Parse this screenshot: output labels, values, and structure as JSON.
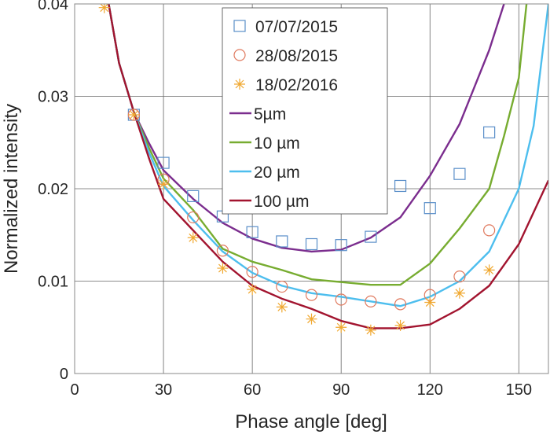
{
  "chart_data": {
    "type": "scatter+line",
    "xlabel": "Phase angle [deg]",
    "ylabel": "Normalized intensity",
    "xlim": [
      0,
      160
    ],
    "ylim": [
      0,
      0.04
    ],
    "xticks": [
      0,
      30,
      60,
      90,
      120,
      150
    ],
    "yticks": [
      0,
      0.01,
      0.02,
      0.03,
      0.04
    ],
    "ytick_labels": [
      "0",
      "0.01",
      "0.02",
      "0.03",
      "0.04"
    ],
    "grid": true,
    "legend_placement": "top-center",
    "scatter_series": [
      {
        "name": "07/07/2015",
        "marker": "square",
        "color": "#5b8fc9",
        "x": [
          20,
          30,
          40,
          50,
          60,
          70,
          80,
          90,
          100,
          110,
          120,
          130,
          140
        ],
        "y": [
          0.028,
          0.0228,
          0.0192,
          0.017,
          0.0153,
          0.0143,
          0.014,
          0.0139,
          0.0148,
          0.0203,
          0.0179,
          0.0216,
          0.0261
        ]
      },
      {
        "name": "28/08/2015",
        "marker": "circle",
        "color": "#e07a5f",
        "x": [
          20,
          30,
          40,
          50,
          60,
          70,
          80,
          90,
          100,
          110,
          120,
          130,
          140
        ],
        "y": [
          0.028,
          0.021,
          0.0169,
          0.0133,
          0.011,
          0.0094,
          0.0085,
          0.008,
          0.0078,
          0.0075,
          0.0085,
          0.0105,
          0.0155
        ]
      },
      {
        "name": "18/02/2016",
        "marker": "asterisk",
        "color": "#f0a830",
        "x": [
          10,
          20,
          30,
          40,
          50,
          60,
          70,
          80,
          90,
          100,
          110,
          120,
          130,
          140
        ],
        "y": [
          0.0396,
          0.028,
          0.0205,
          0.0147,
          0.0114,
          0.0091,
          0.0072,
          0.0059,
          0.005,
          0.0047,
          0.0052,
          0.0077,
          0.0087,
          0.0112
        ]
      }
    ],
    "line_series": [
      {
        "name": "5µm",
        "color": "#7b2d8e",
        "x": [
          11.5,
          15,
          20,
          25,
          30,
          40,
          50,
          60,
          70,
          80,
          90,
          100,
          110,
          120,
          130,
          140,
          145
        ],
        "y": [
          0.04,
          0.0336,
          0.0283,
          0.025,
          0.022,
          0.0189,
          0.0163,
          0.0146,
          0.0136,
          0.0132,
          0.0134,
          0.0147,
          0.0169,
          0.0214,
          0.027,
          0.035,
          0.04
        ]
      },
      {
        "name": "10 µm",
        "color": "#77ac30",
        "x": [
          11.5,
          15,
          20,
          25,
          30,
          40,
          50,
          60,
          70,
          80,
          90,
          100,
          110,
          120,
          130,
          140,
          145,
          150,
          152.6
        ],
        "y": [
          0.04,
          0.0336,
          0.0283,
          0.0245,
          0.0211,
          0.0177,
          0.0135,
          0.0121,
          0.0112,
          0.0102,
          0.0099,
          0.0096,
          0.0096,
          0.0119,
          0.0157,
          0.02,
          0.0257,
          0.032,
          0.04
        ]
      },
      {
        "name": "20 µm",
        "color": "#4dbeee",
        "x": [
          11.5,
          15,
          20,
          25,
          30,
          40,
          50,
          60,
          70,
          80,
          90,
          100,
          110,
          120,
          130,
          140,
          150,
          155,
          160
        ],
        "y": [
          0.04,
          0.0336,
          0.0283,
          0.024,
          0.0203,
          0.0166,
          0.0132,
          0.0109,
          0.0095,
          0.0087,
          0.0083,
          0.0078,
          0.0073,
          0.0083,
          0.01,
          0.0132,
          0.02,
          0.0268,
          0.04
        ]
      },
      {
        "name": "100 µm",
        "color": "#a2142f",
        "x": [
          11.5,
          15,
          20,
          25,
          30,
          40,
          50,
          60,
          70,
          80,
          90,
          100,
          110,
          120,
          130,
          140,
          150,
          160
        ],
        "y": [
          0.04,
          0.0336,
          0.0283,
          0.0234,
          0.0189,
          0.0155,
          0.0121,
          0.0095,
          0.0081,
          0.007,
          0.0057,
          0.0049,
          0.0049,
          0.0053,
          0.007,
          0.0095,
          0.014,
          0.0209
        ]
      }
    ]
  }
}
